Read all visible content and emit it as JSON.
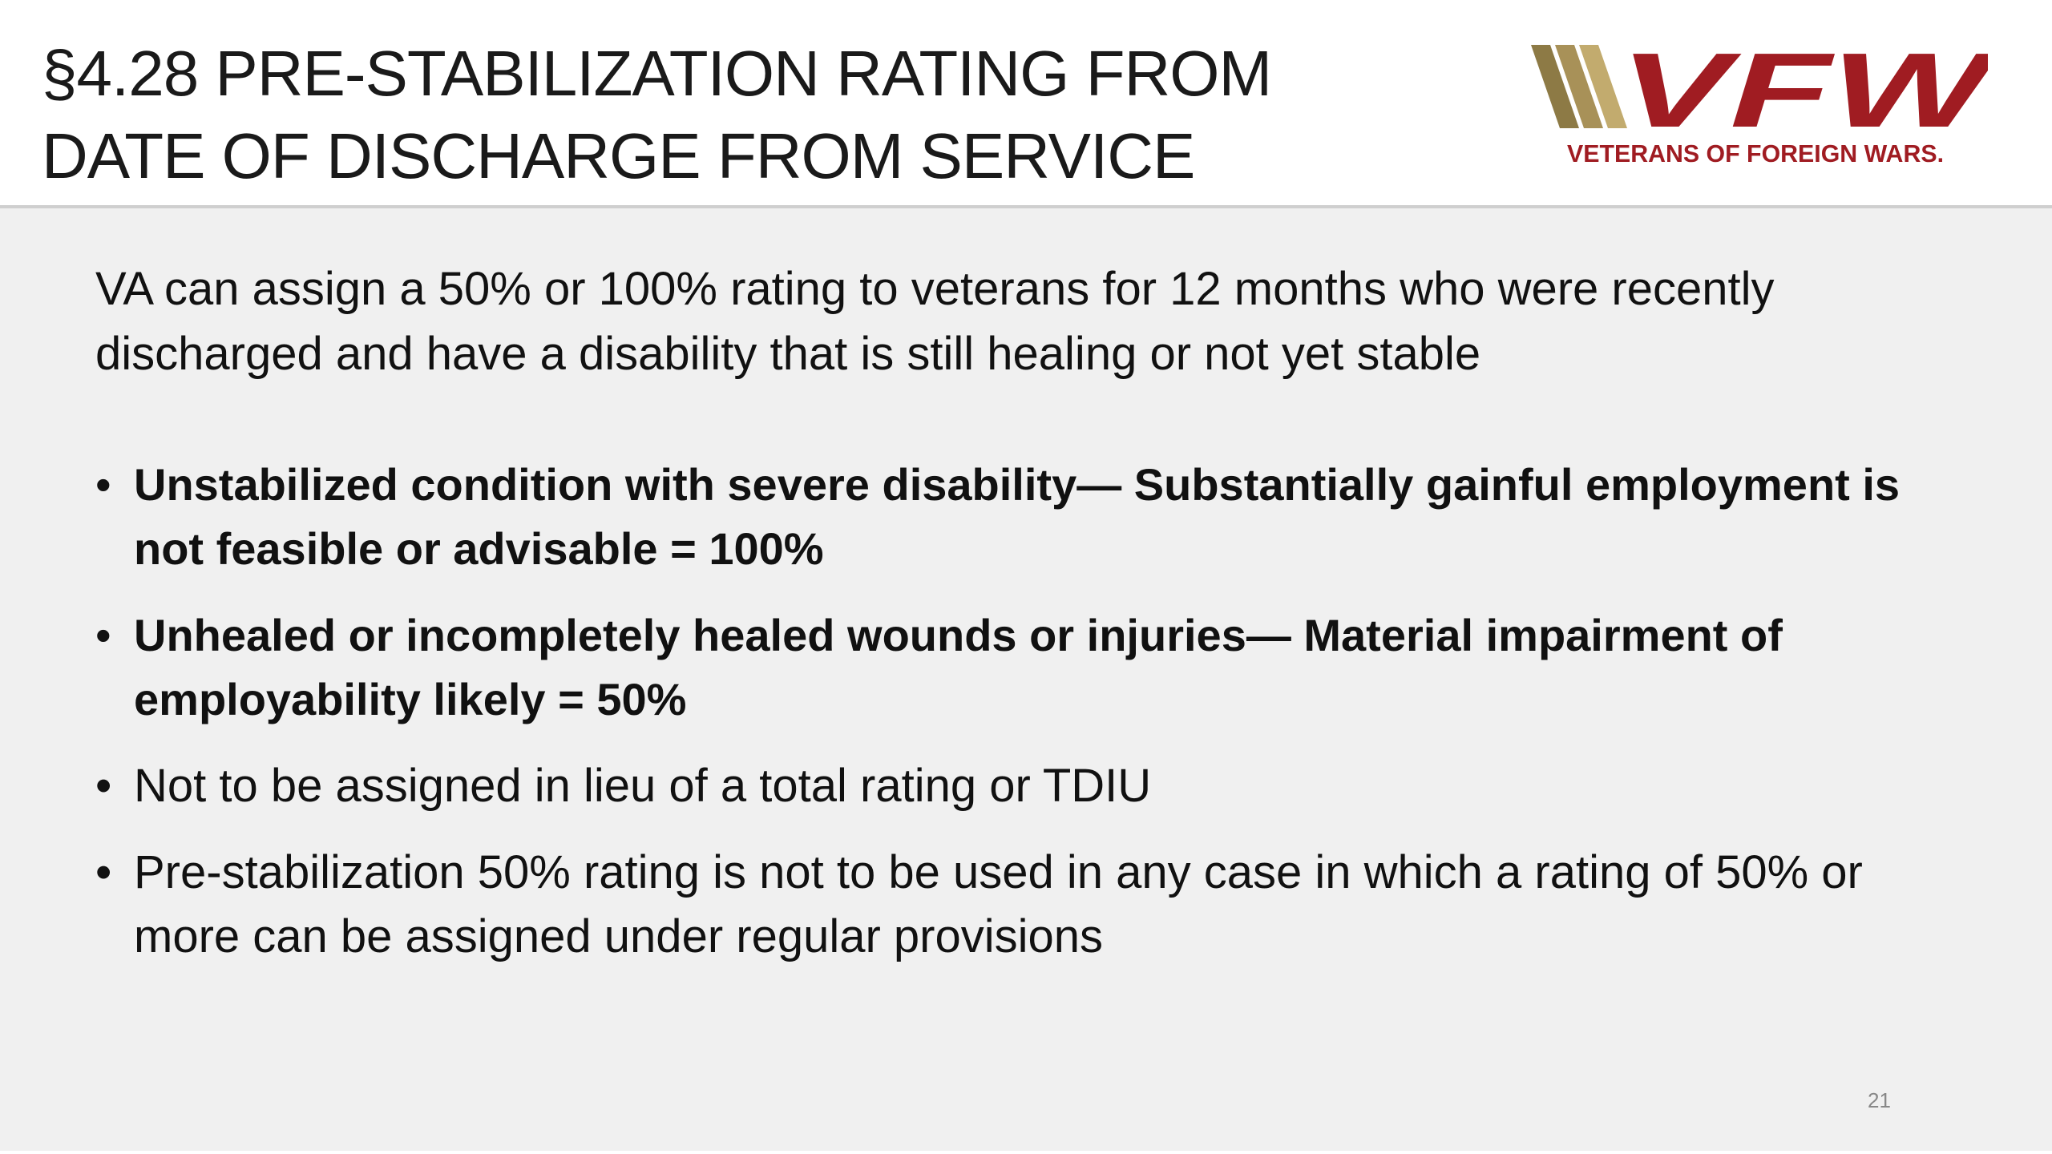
{
  "header": {
    "title": "§4.28 PRE-STABILIZATION RATING FROM DATE OF DISCHARGE FROM SERVICE",
    "logo": {
      "mark": "VFW",
      "caption": "VETERANS OF FOREIGN WARS."
    }
  },
  "body": {
    "intro": "VA can assign a 50% or 100% rating to veterans for 12 months who were recently discharged and have a disability that is still healing or not yet stable",
    "bullets": [
      {
        "text": "Unstabilized condition with severe disability— Substantially gainful employment is not feasible or advisable = 100%",
        "bold": true
      },
      {
        "text": "Unhealed or incompletely healed wounds or injuries— Material impairment of employability likely = 50%",
        "bold": true
      },
      {
        "text": "Not to be assigned in lieu of a total rating or TDIU",
        "bold": false
      },
      {
        "text": "Pre-stabilization 50% rating is not to be used in any case in which a rating of 50% or more can be assigned under regular provisions",
        "bold": false
      }
    ]
  },
  "footer": {
    "page_number": "21"
  }
}
